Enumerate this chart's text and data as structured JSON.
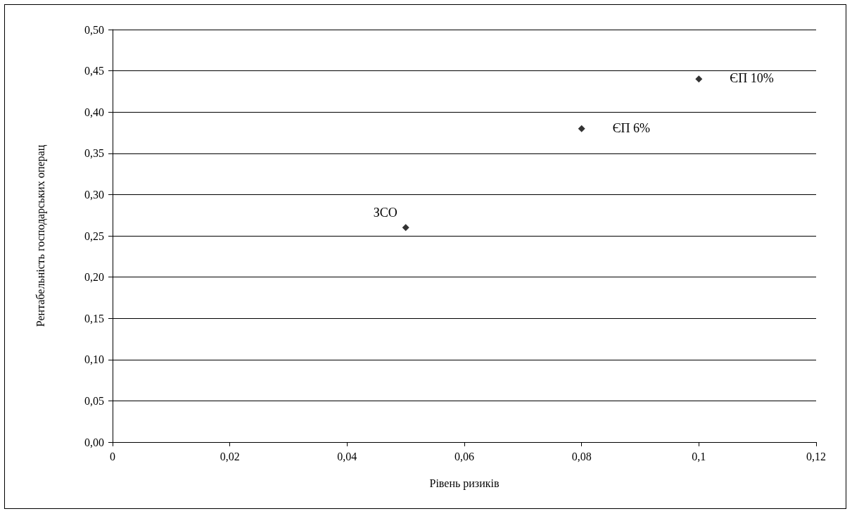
{
  "chart_data": {
    "type": "scatter",
    "xlabel": "Рівень ризиків",
    "ylabel": "Рентабельність господарських операц",
    "x": [
      0.05,
      0.08,
      0.1
    ],
    "values": [
      0.26,
      0.38,
      0.44
    ],
    "color": "#000000",
    "marker": "diamond",
    "xlim": [
      0,
      0.12
    ],
    "xticks": [
      0,
      {
        "value": 0.02,
        "label": "0,02"
      },
      {
        "value": 0.04,
        "label": "0,04"
      },
      {
        "value": 0.06,
        "label": "0,06"
      },
      {
        "value": 0.08,
        "label": "0,08"
      },
      {
        "value": 0.1,
        "label": "0,1"
      },
      {
        "value": 0.12,
        "label": "0,12"
      }
    ],
    "ylim": [
      0,
      0.5
    ],
    "yticks": [
      {
        "value": 0,
        "label": "0,00"
      },
      {
        "value": 0.05,
        "label": "0,05"
      },
      {
        "value": 0.1,
        "label": "0,10"
      },
      {
        "value": 0.15,
        "label": "0,15"
      },
      {
        "value": 0.2,
        "label": "0,20"
      },
      {
        "value": 0.25,
        "label": "0,25"
      },
      {
        "value": 0.3,
        "label": "0,30"
      },
      {
        "value": 0.35,
        "label": "0,35"
      },
      {
        "value": 0.4,
        "label": "0,40"
      },
      {
        "value": 0.45,
        "label": "0,45"
      },
      {
        "value": 0.5,
        "label": "0,50"
      }
    ],
    "grid": "y",
    "annotations": [
      {
        "text": "ЗСО",
        "x": 0.05,
        "y": 0.26
      },
      {
        "text": "ЄП 6%",
        "x": 0.08,
        "y": 0.38
      },
      {
        "text": "ЄП 10%",
        "x": 0.1,
        "y": 0.44
      }
    ]
  }
}
